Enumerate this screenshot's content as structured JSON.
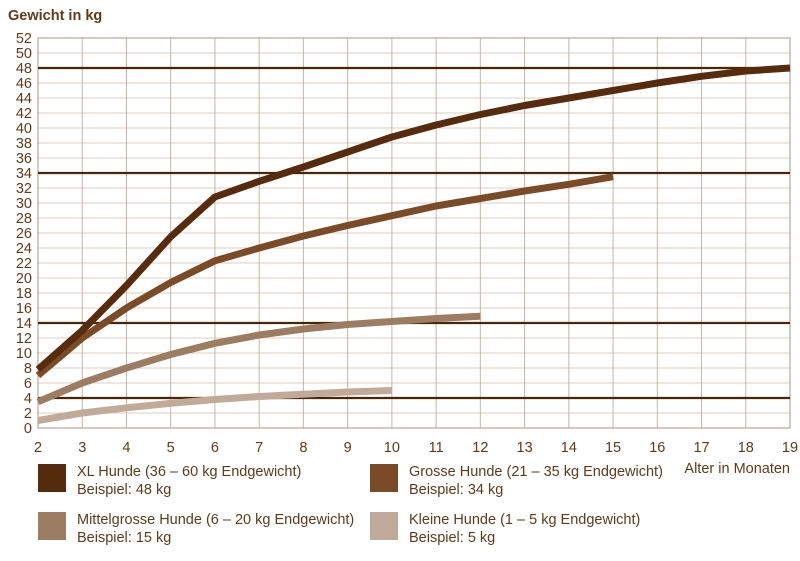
{
  "title": "Gewicht in kg",
  "x_axis_label": "Alter in Monaten",
  "colors": {
    "text": "#5d3b1c",
    "grid_horizontal": "#dccdbf",
    "grid_vertical": "#c7b5a5",
    "plot_border": "#b9a695",
    "reference_line": "#4a2609",
    "background": "#ffffff"
  },
  "chart_data": {
    "type": "line",
    "title": "Gewicht in kg",
    "xlabel": "Alter in Monaten",
    "ylabel": "Gewicht in kg",
    "xlim": [
      2,
      19
    ],
    "ylim": [
      0,
      52
    ],
    "x_ticks": [
      2,
      3,
      4,
      5,
      6,
      7,
      8,
      9,
      10,
      11,
      12,
      13,
      14,
      15,
      16,
      17,
      18,
      19
    ],
    "y_ticks": [
      0,
      2,
      4,
      6,
      8,
      10,
      12,
      14,
      16,
      18,
      20,
      22,
      24,
      26,
      28,
      30,
      32,
      34,
      36,
      38,
      40,
      42,
      44,
      46,
      48,
      50,
      52
    ],
    "grid": true,
    "legend_position": "bottom",
    "reference_lines": [
      48,
      34,
      14,
      4
    ],
    "series": [
      {
        "name": "Kleine Hunde (1 – 5 kg Endgewicht)",
        "example": "Beispiel: 5 kg",
        "color": "#c1aa99",
        "x": [
          2,
          3,
          4,
          5,
          6,
          7,
          8,
          9,
          10
        ],
        "y": [
          1,
          2,
          2.7,
          3.3,
          3.8,
          4.2,
          4.5,
          4.8,
          5
        ]
      },
      {
        "name": "Mittelgrosse Hunde (6 – 20 kg Endgewicht)",
        "example": "Beispiel: 15 kg",
        "color": "#9d7d61",
        "x": [
          2,
          3,
          4,
          5,
          6,
          7,
          8,
          9,
          10,
          11,
          12
        ],
        "y": [
          3.5,
          6,
          8,
          9.8,
          11.3,
          12.4,
          13.2,
          13.8,
          14.2,
          14.6,
          14.9
        ]
      },
      {
        "name": "Grosse Hunde (21 – 35 kg Endgewicht)",
        "example": "Beispiel: 34 kg",
        "color": "#7b4b28",
        "x": [
          2,
          3,
          4,
          5,
          6,
          7,
          8,
          9,
          10,
          11,
          12,
          13,
          14,
          15
        ],
        "y": [
          7,
          12,
          16,
          19.4,
          22.3,
          24,
          25.6,
          27,
          28.3,
          29.6,
          30.6,
          31.6,
          32.5,
          33.5
        ]
      },
      {
        "name": "XL Hunde (36 – 60 kg Endgewicht)",
        "example": "Beispiel: 48 kg",
        "color": "#562b0e",
        "x": [
          2,
          3,
          4,
          5,
          6,
          7,
          8,
          9,
          10,
          11,
          12,
          13,
          14,
          15,
          16,
          17,
          18,
          19
        ],
        "y": [
          7.8,
          13,
          19,
          25.5,
          30.8,
          32.9,
          34.8,
          36.8,
          38.8,
          40.4,
          41.8,
          43,
          44,
          45,
          46,
          46.9,
          47.6,
          48
        ]
      }
    ]
  },
  "legend": {
    "items": [
      {
        "label": "XL Hunde (36 – 60 kg Endgewicht)",
        "example": "Beispiel: 48 kg",
        "color": "#562b0e"
      },
      {
        "label": "Grosse Hunde (21 – 35 kg Endgewicht)",
        "example": "Beispiel: 34 kg",
        "color": "#7b4b28"
      },
      {
        "label": "Mittelgrosse Hunde (6 – 20 kg Endgewicht)",
        "example": "Beispiel: 15 kg",
        "color": "#9d7d61"
      },
      {
        "label": "Kleine Hunde (1 – 5 kg Endgewicht)",
        "example": "Beispiel: 5 kg",
        "color": "#c1aa99"
      }
    ]
  }
}
